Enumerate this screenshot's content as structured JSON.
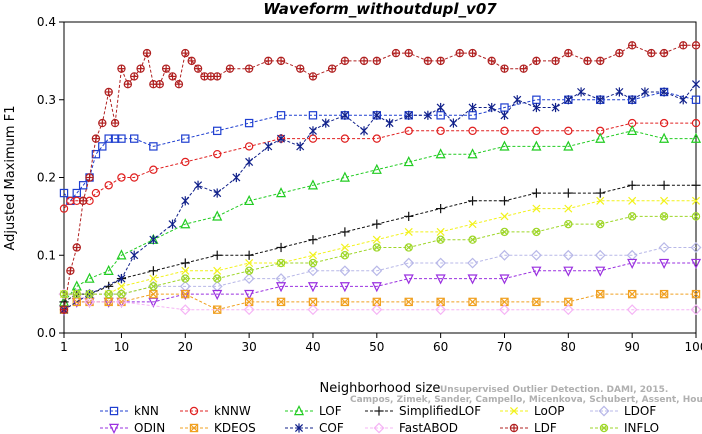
{
  "chart_data": {
    "type": "line",
    "title": "Waveform_withoutdupl_v07",
    "xlabel": "Neighborhood size",
    "ylabel": "Adjusted Maximum F1",
    "xlim": [
      1,
      100
    ],
    "ylim": [
      0.0,
      0.4
    ],
    "xticks": [
      1,
      10,
      20,
      30,
      40,
      50,
      60,
      70,
      80,
      90,
      100
    ],
    "yticks": [
      0.0,
      0.1,
      0.2,
      0.3,
      0.4
    ],
    "grid": false,
    "legend_position": "bottom",
    "watermark": [
      "Campos, Zimek, Sander, Campello, Micenkova, Schubert, Assent, Houle",
      "Unsupervised Outlier Detection. DAMI, 2015."
    ],
    "series": [
      {
        "name": "kNN",
        "color": "#1f3fd0",
        "marker": "square",
        "x": [
          1,
          2,
          3,
          4,
          5,
          6,
          7,
          8,
          9,
          10,
          12,
          15,
          20,
          25,
          30,
          35,
          40,
          45,
          50,
          55,
          60,
          65,
          70,
          75,
          80,
          85,
          90,
          95,
          100
        ],
        "values": [
          0.18,
          0.17,
          0.18,
          0.19,
          0.2,
          0.23,
          0.24,
          0.25,
          0.25,
          0.25,
          0.25,
          0.24,
          0.25,
          0.26,
          0.27,
          0.28,
          0.28,
          0.28,
          0.28,
          0.28,
          0.28,
          0.28,
          0.29,
          0.3,
          0.3,
          0.3,
          0.3,
          0.31,
          0.3
        ]
      },
      {
        "name": "kNNW",
        "color": "#e02020",
        "marker": "circle",
        "x": [
          1,
          2,
          3,
          4,
          5,
          6,
          8,
          10,
          12,
          15,
          20,
          25,
          30,
          35,
          40,
          45,
          50,
          55,
          60,
          65,
          70,
          75,
          80,
          85,
          90,
          95,
          100
        ],
        "values": [
          0.16,
          0.17,
          0.17,
          0.17,
          0.17,
          0.18,
          0.19,
          0.2,
          0.2,
          0.21,
          0.22,
          0.23,
          0.24,
          0.25,
          0.25,
          0.25,
          0.25,
          0.26,
          0.26,
          0.26,
          0.26,
          0.26,
          0.26,
          0.26,
          0.27,
          0.27,
          0.27
        ]
      },
      {
        "name": "LOF",
        "color": "#22cc22",
        "marker": "triangle",
        "x": [
          1,
          3,
          5,
          8,
          10,
          15,
          20,
          25,
          30,
          35,
          40,
          45,
          50,
          55,
          60,
          65,
          70,
          75,
          80,
          85,
          90,
          95,
          100
        ],
        "values": [
          0.04,
          0.06,
          0.07,
          0.08,
          0.1,
          0.12,
          0.14,
          0.15,
          0.17,
          0.18,
          0.19,
          0.2,
          0.21,
          0.22,
          0.23,
          0.23,
          0.24,
          0.24,
          0.24,
          0.25,
          0.26,
          0.25,
          0.25
        ]
      },
      {
        "name": "SimplifiedLOF",
        "color": "#111111",
        "marker": "plus",
        "x": [
          1,
          3,
          5,
          8,
          10,
          15,
          20,
          25,
          30,
          35,
          40,
          45,
          50,
          55,
          60,
          65,
          70,
          75,
          80,
          85,
          90,
          95,
          100
        ],
        "values": [
          0.04,
          0.05,
          0.05,
          0.06,
          0.07,
          0.08,
          0.09,
          0.1,
          0.1,
          0.11,
          0.12,
          0.13,
          0.14,
          0.15,
          0.16,
          0.17,
          0.17,
          0.18,
          0.18,
          0.18,
          0.19,
          0.19,
          0.19
        ]
      },
      {
        "name": "LoOP",
        "color": "#f2f21a",
        "marker": "x",
        "x": [
          1,
          3,
          5,
          8,
          10,
          15,
          20,
          25,
          30,
          35,
          40,
          45,
          50,
          55,
          60,
          65,
          70,
          75,
          80,
          85,
          90,
          95,
          100
        ],
        "values": [
          0.05,
          0.05,
          0.05,
          0.05,
          0.06,
          0.07,
          0.08,
          0.08,
          0.09,
          0.09,
          0.1,
          0.11,
          0.12,
          0.13,
          0.13,
          0.14,
          0.15,
          0.16,
          0.16,
          0.17,
          0.17,
          0.17,
          0.17
        ]
      },
      {
        "name": "LDOF",
        "color": "#b8b8e8",
        "marker": "diamond",
        "x": [
          1,
          3,
          5,
          8,
          10,
          15,
          20,
          25,
          30,
          35,
          40,
          45,
          50,
          55,
          60,
          65,
          70,
          75,
          80,
          85,
          90,
          95,
          100
        ],
        "values": [
          0.05,
          0.05,
          0.05,
          0.05,
          0.05,
          0.06,
          0.06,
          0.06,
          0.07,
          0.07,
          0.08,
          0.08,
          0.08,
          0.09,
          0.09,
          0.09,
          0.1,
          0.1,
          0.1,
          0.1,
          0.1,
          0.11,
          0.11
        ]
      },
      {
        "name": "ODIN",
        "color": "#9a30e0",
        "marker": "triangle-down",
        "x": [
          1,
          3,
          5,
          8,
          10,
          15,
          20,
          25,
          30,
          35,
          40,
          45,
          50,
          55,
          60,
          65,
          70,
          75,
          80,
          85,
          90,
          95,
          100
        ],
        "values": [
          0.03,
          0.04,
          0.04,
          0.04,
          0.04,
          0.04,
          0.05,
          0.05,
          0.05,
          0.06,
          0.06,
          0.06,
          0.06,
          0.07,
          0.07,
          0.07,
          0.07,
          0.08,
          0.08,
          0.08,
          0.09,
          0.09,
          0.09
        ]
      },
      {
        "name": "KDEOS",
        "color": "#f0a020",
        "marker": "square-x",
        "x": [
          1,
          3,
          5,
          8,
          10,
          15,
          20,
          25,
          30,
          35,
          40,
          45,
          50,
          55,
          60,
          65,
          70,
          75,
          80,
          85,
          90,
          95,
          100
        ],
        "values": [
          0.03,
          0.04,
          0.04,
          0.04,
          0.04,
          0.05,
          0.05,
          0.03,
          0.04,
          0.04,
          0.04,
          0.04,
          0.04,
          0.04,
          0.04,
          0.04,
          0.04,
          0.04,
          0.04,
          0.05,
          0.05,
          0.05,
          0.05
        ]
      },
      {
        "name": "COF",
        "color": "#10208a",
        "marker": "star",
        "x": [
          1,
          5,
          10,
          12,
          15,
          18,
          20,
          22,
          25,
          28,
          30,
          33,
          35,
          38,
          40,
          42,
          45,
          48,
          50,
          52,
          55,
          58,
          60,
          62,
          65,
          68,
          70,
          72,
          75,
          78,
          80,
          82,
          85,
          88,
          90,
          92,
          95,
          98,
          100
        ],
        "values": [
          0.03,
          0.05,
          0.07,
          0.1,
          0.12,
          0.14,
          0.17,
          0.19,
          0.18,
          0.2,
          0.22,
          0.24,
          0.25,
          0.24,
          0.26,
          0.27,
          0.28,
          0.26,
          0.28,
          0.27,
          0.28,
          0.28,
          0.29,
          0.27,
          0.29,
          0.29,
          0.28,
          0.3,
          0.29,
          0.29,
          0.3,
          0.31,
          0.3,
          0.31,
          0.3,
          0.31,
          0.31,
          0.3,
          0.32
        ]
      },
      {
        "name": "FastABOD",
        "color": "#f5b4f5",
        "marker": "diamond",
        "x": [
          1,
          3,
          5,
          10,
          20,
          30,
          40,
          50,
          60,
          70,
          80,
          90,
          100
        ],
        "values": [
          0.05,
          0.05,
          0.04,
          0.04,
          0.03,
          0.03,
          0.03,
          0.03,
          0.03,
          0.03,
          0.03,
          0.03,
          0.03
        ]
      },
      {
        "name": "LDF",
        "color": "#b02020",
        "marker": "circle-plus",
        "x": [
          1,
          2,
          3,
          4,
          5,
          6,
          7,
          8,
          9,
          10,
          11,
          12,
          13,
          14,
          15,
          16,
          17,
          18,
          19,
          20,
          21,
          22,
          23,
          24,
          25,
          27,
          30,
          33,
          35,
          38,
          40,
          43,
          45,
          48,
          50,
          53,
          55,
          58,
          60,
          63,
          65,
          68,
          70,
          73,
          75,
          78,
          80,
          83,
          85,
          88,
          90,
          93,
          95,
          98,
          100
        ],
        "values": [
          0.03,
          0.08,
          0.11,
          0.17,
          0.2,
          0.25,
          0.27,
          0.31,
          0.27,
          0.34,
          0.32,
          0.33,
          0.34,
          0.36,
          0.32,
          0.32,
          0.34,
          0.33,
          0.32,
          0.36,
          0.35,
          0.34,
          0.33,
          0.33,
          0.33,
          0.34,
          0.34,
          0.35,
          0.35,
          0.34,
          0.33,
          0.34,
          0.35,
          0.35,
          0.35,
          0.36,
          0.36,
          0.35,
          0.35,
          0.36,
          0.36,
          0.35,
          0.34,
          0.34,
          0.35,
          0.35,
          0.36,
          0.35,
          0.35,
          0.36,
          0.37,
          0.36,
          0.36,
          0.37,
          0.37
        ]
      },
      {
        "name": "INFLO",
        "color": "#9ed628",
        "marker": "circle-x",
        "x": [
          1,
          3,
          5,
          8,
          10,
          15,
          20,
          25,
          30,
          35,
          40,
          45,
          50,
          55,
          60,
          65,
          70,
          75,
          80,
          85,
          90,
          95,
          100
        ],
        "values": [
          0.05,
          0.05,
          0.05,
          0.05,
          0.05,
          0.06,
          0.07,
          0.07,
          0.08,
          0.09,
          0.09,
          0.1,
          0.11,
          0.11,
          0.12,
          0.12,
          0.13,
          0.13,
          0.14,
          0.14,
          0.15,
          0.15,
          0.15
        ]
      }
    ]
  }
}
